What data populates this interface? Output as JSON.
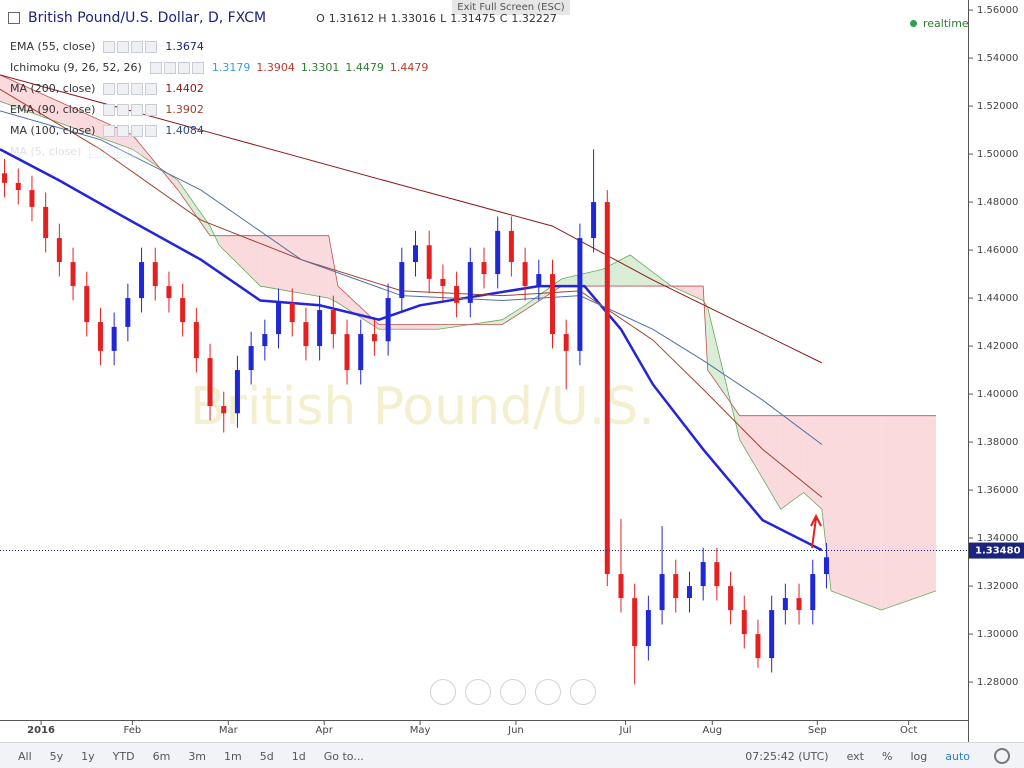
{
  "header": {
    "exit_fullscreen": "Exit Full Screen (ESC)",
    "status": "realtime"
  },
  "chart_data": {
    "type": "candlestick",
    "title": "British Pound/U.S. Dollar, D, FXCM",
    "watermark": "British Pound/U.S.",
    "ohlc_labels": [
      "O",
      "H",
      "L",
      "C"
    ],
    "ohlc_values": [
      1.31612,
      1.33016,
      1.31475,
      1.32227
    ],
    "up_color": "#2027d5",
    "down_color": "#e52020",
    "x": [
      -8,
      -5,
      -2,
      1,
      4,
      7,
      10,
      13,
      16,
      19,
      22,
      25,
      28,
      31,
      34,
      37,
      40,
      43,
      46,
      49,
      52,
      55,
      58,
      61,
      64,
      67,
      70,
      73,
      76,
      79,
      82,
      85,
      88,
      91,
      94,
      97,
      100,
      103,
      106,
      109,
      112,
      115,
      118,
      121,
      124,
      127,
      130,
      133,
      136,
      139,
      142,
      145,
      148,
      151,
      154,
      157,
      160,
      163,
      166,
      169,
      172
    ],
    "open": [
      1.492,
      1.488,
      1.485,
      1.478,
      1.465,
      1.455,
      1.445,
      1.43,
      1.418,
      1.428,
      1.44,
      1.455,
      1.445,
      1.44,
      1.43,
      1.415,
      1.395,
      1.392,
      1.41,
      1.42,
      1.425,
      1.438,
      1.43,
      1.42,
      1.435,
      1.425,
      1.41,
      1.425,
      1.422,
      1.44,
      1.455,
      1.462,
      1.448,
      1.445,
      1.438,
      1.455,
      1.45,
      1.468,
      1.455,
      1.445,
      1.45,
      1.425,
      1.418,
      1.465,
      1.48,
      1.325,
      1.315,
      1.295,
      1.31,
      1.325,
      1.315,
      1.32,
      1.33,
      1.32,
      1.31,
      1.3,
      1.29,
      1.31,
      1.315,
      1.31,
      1.325
    ],
    "high": [
      1.498,
      1.494,
      1.491,
      1.484,
      1.471,
      1.461,
      1.451,
      1.436,
      1.434,
      1.446,
      1.461,
      1.461,
      1.451,
      1.446,
      1.436,
      1.421,
      1.401,
      1.416,
      1.426,
      1.431,
      1.444,
      1.444,
      1.436,
      1.441,
      1.441,
      1.431,
      1.431,
      1.431,
      1.446,
      1.461,
      1.468,
      1.468,
      1.454,
      1.451,
      1.461,
      1.461,
      1.474,
      1.474,
      1.461,
      1.456,
      1.456,
      1.431,
      1.471,
      1.502,
      1.485,
      1.348,
      1.321,
      1.316,
      1.345,
      1.331,
      1.326,
      1.336,
      1.336,
      1.326,
      1.316,
      1.306,
      1.316,
      1.321,
      1.321,
      1.331,
      1.338
    ],
    "low": [
      1.482,
      1.479,
      1.472,
      1.459,
      1.449,
      1.439,
      1.424,
      1.412,
      1.412,
      1.422,
      1.434,
      1.439,
      1.434,
      1.424,
      1.409,
      1.389,
      1.384,
      1.386,
      1.404,
      1.414,
      1.419,
      1.424,
      1.414,
      1.414,
      1.419,
      1.404,
      1.404,
      1.416,
      1.416,
      1.434,
      1.449,
      1.442,
      1.439,
      1.432,
      1.432,
      1.444,
      1.444,
      1.449,
      1.439,
      1.439,
      1.419,
      1.402,
      1.412,
      1.459,
      1.32,
      1.309,
      1.279,
      1.289,
      1.304,
      1.309,
      1.309,
      1.314,
      1.314,
      1.304,
      1.294,
      1.286,
      1.284,
      1.304,
      1.304,
      1.304,
      1.319
    ],
    "close": [
      1.488,
      1.485,
      1.478,
      1.465,
      1.455,
      1.445,
      1.43,
      1.418,
      1.428,
      1.44,
      1.455,
      1.445,
      1.44,
      1.43,
      1.415,
      1.395,
      1.392,
      1.41,
      1.42,
      1.425,
      1.438,
      1.43,
      1.42,
      1.435,
      1.425,
      1.41,
      1.425,
      1.422,
      1.44,
      1.455,
      1.462,
      1.448,
      1.445,
      1.438,
      1.455,
      1.45,
      1.468,
      1.455,
      1.445,
      1.45,
      1.425,
      1.418,
      1.465,
      1.48,
      1.325,
      1.315,
      1.295,
      1.31,
      1.325,
      1.315,
      1.32,
      1.33,
      1.32,
      1.31,
      1.3,
      1.29,
      1.31,
      1.315,
      1.31,
      1.325,
      1.332
    ],
    "xlim": [
      -9,
      203
    ],
    "xticks": [
      {
        "value": 0,
        "label": "2016"
      },
      {
        "value": 20,
        "label": "Feb"
      },
      {
        "value": 41,
        "label": "Mar"
      },
      {
        "value": 62,
        "label": "Apr"
      },
      {
        "value": 83,
        "label": "May"
      },
      {
        "value": 104,
        "label": "Jun"
      },
      {
        "value": 128,
        "label": "Jul"
      },
      {
        "value": 147,
        "label": "Aug"
      },
      {
        "value": 170,
        "label": "Sep"
      },
      {
        "value": 190,
        "label": "Oct"
      }
    ],
    "ylim": [
      1.2642,
      1.5642
    ],
    "yticks": [
      {
        "value": 1.56,
        "label": "1.56000"
      },
      {
        "value": 1.54,
        "label": "1.54000"
      },
      {
        "value": 1.52,
        "label": "1.52000"
      },
      {
        "value": 1.5,
        "label": "1.50000"
      },
      {
        "value": 1.48,
        "label": "1.48000"
      },
      {
        "value": 1.46,
        "label": "1.46000"
      },
      {
        "value": 1.44,
        "label": "1.44000"
      },
      {
        "value": 1.42,
        "label": "1.42000"
      },
      {
        "value": 1.4,
        "label": "1.40000"
      },
      {
        "value": 1.38,
        "label": "1.38000"
      },
      {
        "value": 1.36,
        "label": "1.36000"
      },
      {
        "value": 1.34,
        "label": "1.34000"
      },
      {
        "value": 1.32,
        "label": "1.32000"
      },
      {
        "value": 1.3,
        "label": "1.30000"
      },
      {
        "value": 1.28,
        "label": "1.28000"
      }
    ],
    "last_price": {
      "value": 1.3348,
      "label": "1.33480",
      "color": "#1a237e"
    },
    "grid": false,
    "series": [
      {
        "name": "EMA (55, close)",
        "color": "#2424d8",
        "width": 2.5,
        "last": [
          1.3674
        ],
        "value_colors": [
          "#1a237e"
        ],
        "x": [
          -9,
          4,
          17,
          35,
          48,
          61,
          74,
          83,
          96,
          109,
          119,
          127,
          134,
          145,
          158,
          171
        ],
        "values": [
          1.502,
          1.489,
          1.475,
          1.456,
          1.439,
          1.437,
          1.431,
          1.437,
          1.441,
          1.445,
          1.445,
          1.427,
          1.404,
          1.377,
          1.3475,
          1.335
        ]
      },
      {
        "name": "Ichimoku (9, 26, 52, 26)",
        "kind": "cloud",
        "color": "#6aa85f",
        "color_b": "#c0504d",
        "fill_up": "#d4ead0",
        "fill_down": "#f9d3d6",
        "last": [
          1.3179,
          1.3904,
          1.3301,
          1.4479,
          1.4479
        ],
        "value_colors": [
          "#3b9ddb",
          "#c0392b",
          "#2e7d32",
          "#2e7d32",
          "#c0392b"
        ],
        "x": [
          -9,
          20,
          30,
          37,
          39,
          48,
          63,
          65,
          74,
          87,
          101,
          106,
          114,
          123,
          129,
          138,
          145,
          146,
          153,
          162,
          167,
          171,
          173,
          184,
          196
        ],
        "span_a": [
          1.522,
          1.502,
          1.489,
          1.47,
          1.462,
          1.445,
          1.44,
          1.438,
          1.427,
          1.427,
          1.431,
          1.437,
          1.448,
          1.452,
          1.458,
          1.445,
          1.439,
          1.436,
          1.381,
          1.352,
          1.359,
          1.352,
          1.318,
          1.31,
          1.318
        ],
        "span_b": [
          1.533,
          1.508,
          1.485,
          1.466,
          1.466,
          1.466,
          1.466,
          1.445,
          1.429,
          1.429,
          1.429,
          1.435,
          1.445,
          1.445,
          1.445,
          1.445,
          1.445,
          1.41,
          1.391,
          1.391,
          1.391,
          1.391,
          1.391,
          1.391,
          1.391
        ]
      },
      {
        "name": "MA (200, close)",
        "color": "#8b1a1a",
        "width": 1,
        "last": [
          1.4402
        ],
        "value_colors": [
          "#8b1a1a"
        ],
        "x": [
          -9,
          35,
          79,
          112,
          134,
          156,
          171
        ],
        "values": [
          1.533,
          1.51,
          1.487,
          1.47,
          1.4475,
          1.427,
          1.413
        ]
      },
      {
        "name": "EMA (90, close)",
        "color": "#a0412d",
        "width": 1,
        "last": [
          1.3902
        ],
        "value_colors": [
          "#a0412d"
        ],
        "x": [
          -9,
          13,
          35,
          57,
          79,
          101,
          118,
          134,
          145,
          158,
          171
        ],
        "values": [
          1.527,
          1.502,
          1.4725,
          1.456,
          1.443,
          1.441,
          1.443,
          1.4225,
          1.402,
          1.377,
          1.357
        ]
      },
      {
        "name": "MA (100, close)",
        "color": "#4f6fa8",
        "width": 1,
        "last": [
          1.4084
        ],
        "value_colors": [
          "#2b4a8a"
        ],
        "x": [
          -9,
          13,
          35,
          57,
          79,
          101,
          118,
          134,
          145,
          158,
          171
        ],
        "values": [
          1.518,
          1.506,
          1.485,
          1.456,
          1.441,
          1.439,
          1.441,
          1.427,
          1.414,
          1.3975,
          1.379
        ]
      },
      {
        "name": "MA (5, close)",
        "hidden": true
      }
    ]
  },
  "toolbar": {
    "ranges": [
      "All",
      "5y",
      "1y",
      "YTD",
      "6m",
      "3m",
      "1m",
      "5d",
      "1d"
    ],
    "goto": "Go to...",
    "clock": "07:25:42 (UTC)",
    "options": [
      "ext",
      "%",
      "log",
      "auto"
    ]
  }
}
